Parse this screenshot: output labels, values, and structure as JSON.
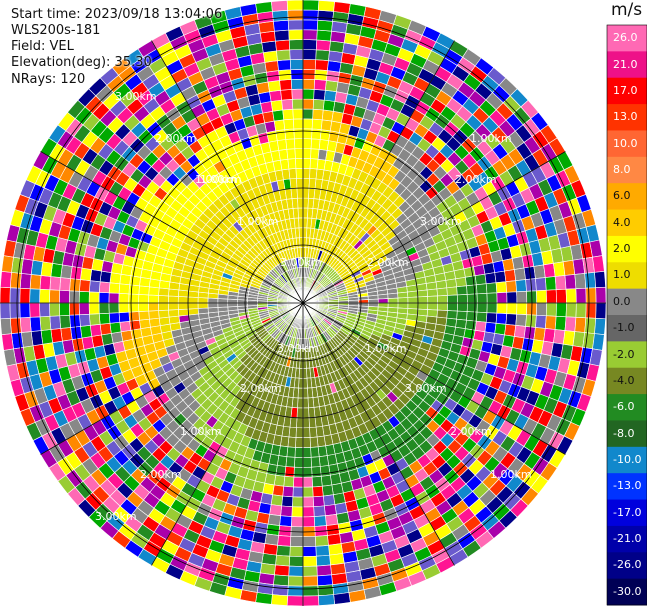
{
  "header": {
    "start_time": "Start time: 2023/09/18 13:04:06",
    "instrument": "WLS200s-181",
    "field": "Field: VEL",
    "elevation": "Elevation(deg): 35.30",
    "nrays": "NRays: 120"
  },
  "colorbar": {
    "unit": "m/s",
    "labels": [
      "26.0",
      "21.0",
      "17.0",
      "13.0",
      "10.0",
      "8.0",
      "6.0",
      "4.0",
      "2.0",
      "1.0",
      "0.0",
      "-1.0",
      "-2.0",
      "-4.0",
      "-6.0",
      "-8.0",
      "-10.0",
      "-13.0",
      "-17.0",
      "-21.0",
      "-26.0",
      "-30.0"
    ],
    "colors": [
      "#ff69b4",
      "#ee1188",
      "#ff0000",
      "#ff3300",
      "#ff6633",
      "#ff8844",
      "#ffaa00",
      "#ffcc00",
      "#ffff00",
      "#eedd00",
      "#888888",
      "#666666",
      "#99cc33",
      "#778822",
      "#228b22",
      "#226622",
      "#1188cc",
      "#0033ff",
      "#0000dd",
      "#0000aa",
      "#000088",
      "#000055"
    ]
  },
  "chart_data": {
    "type": "ppi",
    "field": "VEL",
    "units": "m/s",
    "nrays": 120,
    "range_labels_km": [
      "1.00km",
      "2.00km",
      "3.00km"
    ],
    "range_ring_label": "2.00km",
    "spoke_labels": [
      "3.00km",
      "2.00km",
      "1.00km",
      "1.00km",
      "2.00km",
      "3.00km",
      "3.00km",
      "2.00km",
      "1.00km",
      "1.00km",
      "2.00km",
      "3.00km"
    ]
  }
}
